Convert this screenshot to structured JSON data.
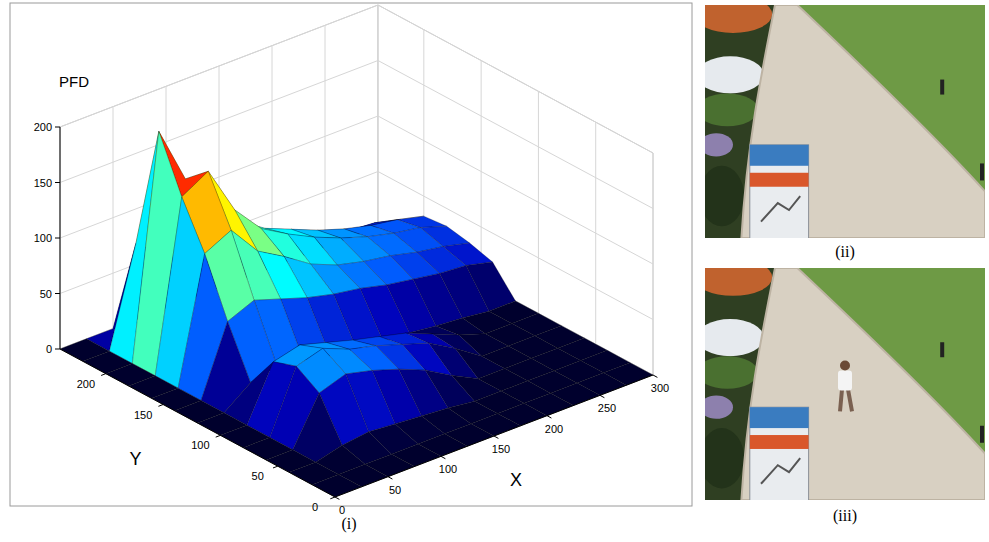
{
  "chart_data": {
    "type": "surface",
    "panel_label": "(i)",
    "zlabel": "PFD",
    "xlabel": "X",
    "ylabel": "Y",
    "x": [
      0,
      25,
      50,
      75,
      100,
      125,
      150,
      175,
      200,
      225,
      250,
      275,
      300
    ],
    "y": [
      0,
      20,
      40,
      60,
      80,
      100,
      120,
      140,
      160,
      180,
      200,
      220,
      240
    ],
    "z": [
      [
        0,
        0,
        0,
        0,
        0,
        0,
        0,
        0,
        0,
        0,
        0,
        0,
        0
      ],
      [
        0,
        0,
        0,
        0,
        0,
        0,
        0,
        0,
        0,
        0,
        0,
        0,
        0
      ],
      [
        0,
        0,
        6,
        9,
        7,
        5,
        3,
        0,
        0,
        0,
        0,
        0,
        0
      ],
      [
        0,
        0,
        42,
        50,
        44,
        36,
        26,
        12,
        0,
        0,
        0,
        0,
        0
      ],
      [
        0,
        0,
        55,
        62,
        52,
        46,
        38,
        30,
        16,
        0,
        0,
        0,
        0
      ],
      [
        0,
        0,
        48,
        54,
        47,
        40,
        34,
        28,
        18,
        8,
        0,
        0,
        0
      ],
      [
        0,
        0,
        18,
        24,
        20,
        15,
        12,
        10,
        8,
        5,
        3,
        0,
        0
      ],
      [
        0,
        0,
        62,
        72,
        64,
        56,
        50,
        46,
        40,
        36,
        32,
        30,
        24
      ],
      [
        0,
        0,
        112,
        124,
        96,
        82,
        66,
        56,
        50,
        46,
        40,
        36,
        30
      ],
      [
        0,
        0,
        152,
        166,
        122,
        96,
        82,
        70,
        60,
        52,
        46,
        42,
        34
      ],
      [
        0,
        0,
        200,
        148,
        112,
        92,
        76,
        66,
        56,
        48,
        42,
        38,
        32
      ],
      [
        0,
        0,
        88,
        70,
        56,
        46,
        40,
        36,
        32,
        28,
        26,
        24,
        18
      ],
      [
        0,
        0,
        0,
        0,
        0,
        0,
        0,
        0,
        0,
        0,
        0,
        0,
        0
      ]
    ],
    "xlim": [
      0,
      300
    ],
    "ylim": [
      0,
      240
    ],
    "zlim": [
      0,
      200
    ],
    "xticks": [
      0,
      50,
      100,
      150,
      200,
      250,
      300
    ],
    "yticks": [
      0,
      50,
      100,
      150,
      200
    ],
    "zticks": [
      0,
      50,
      100,
      150,
      200
    ],
    "grid": true
  },
  "photos": [
    {
      "label": "(ii)"
    },
    {
      "label": "(iii)"
    }
  ]
}
